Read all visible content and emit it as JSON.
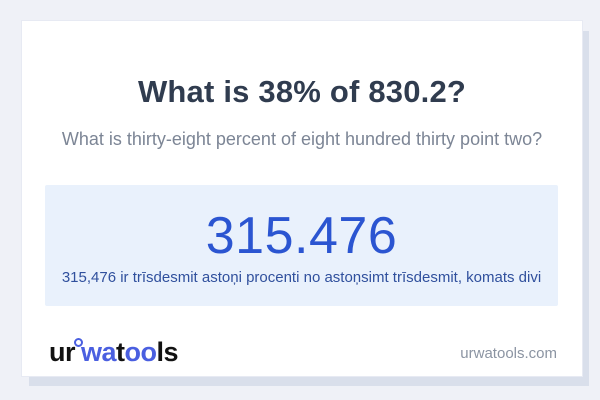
{
  "question": {
    "title": "What is 38% of 830.2?",
    "subtitle": "What is thirty-eight percent of eight hundred thirty point two?"
  },
  "answer": {
    "value": "315.476",
    "sentence": "315,476 ir trīsdesmit astoņi procenti no astoņsimt trīsdesmit, komats divi"
  },
  "footer": {
    "logo": {
      "part1": "ur",
      "part2": "wa",
      "part3": "t",
      "part4": "oo",
      "part5": "ls"
    },
    "site": "urwatools.com"
  },
  "icons": {
    "logo_ring": "degree-ring-icon"
  },
  "colors": {
    "page_background": "#eff1f7",
    "card_background": "#ffffff",
    "card_border": "#e7eaf3",
    "card_shadow": "#d9dfeb",
    "title_text": "#303c4f",
    "subtitle_text": "#7c8595",
    "answer_box_background": "#e9f1fc",
    "answer_value_text": "#2b55d1",
    "answer_sentence_text": "#30509d",
    "logo_dark": "#121212",
    "logo_blue": "#4a5fe0",
    "site_text": "#8b94a2"
  }
}
